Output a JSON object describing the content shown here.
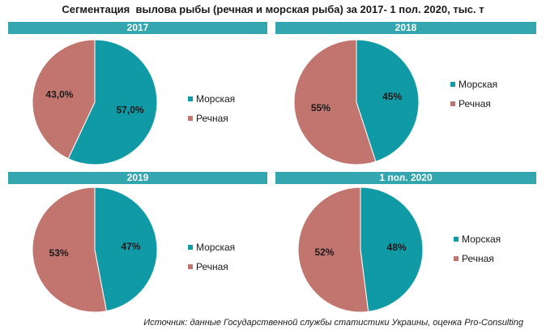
{
  "title": "Сегментация  вылова рыбы (речная и морская рыба) за 2017- 1 пол. 2020, тыс. т",
  "source": "Источник: данные Государственной службы статистики Украины, оценка Pro-Consulting",
  "colors": {
    "sea": "#0f9aa6",
    "river": "#c2756e",
    "band": "#33a6b0"
  },
  "chart_data": [
    {
      "type": "pie",
      "title": "2017",
      "categories": [
        "Морская",
        "Речная"
      ],
      "values": [
        57.0,
        43.0
      ],
      "labels": [
        "57,0%",
        "43,0%"
      ],
      "legend": "right"
    },
    {
      "type": "pie",
      "title": "2018",
      "categories": [
        "Морская",
        "Речная"
      ],
      "values": [
        45,
        55
      ],
      "labels": [
        "45%",
        "55%"
      ],
      "legend": "right"
    },
    {
      "type": "pie",
      "title": "2019",
      "categories": [
        "Морская",
        "Речная"
      ],
      "values": [
        47,
        53
      ],
      "labels": [
        "47%",
        "53%"
      ],
      "legend": "right"
    },
    {
      "type": "pie",
      "title": "1 пол. 2020",
      "categories": [
        "Морская",
        "Речная"
      ],
      "values": [
        48,
        52
      ],
      "labels": [
        "48%",
        "52%"
      ],
      "legend": "right"
    }
  ]
}
